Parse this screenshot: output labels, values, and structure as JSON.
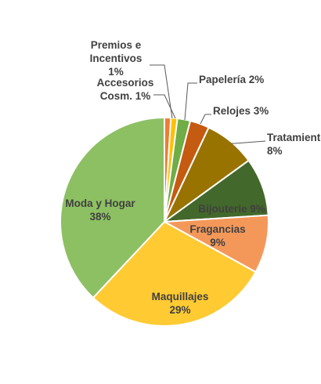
{
  "chart_data": {
    "type": "pie",
    "title": "",
    "start_angle_deg": 0,
    "direction": "clockwise",
    "slices": [
      {
        "name": "Premios e Incentivos",
        "label_lines": [
          "Premios e",
          "Incentivos",
          "1%"
        ],
        "value": 1,
        "color": "#ED7D31"
      },
      {
        "name": "Accesorios Cosm.",
        "label_lines": [
          "Accesorios",
          "Cosm. 1%"
        ],
        "value": 1,
        "color": "#FFC000"
      },
      {
        "name": "Papelería",
        "label_lines": [
          "Papelería 2%"
        ],
        "value": 2,
        "color": "#70AD47"
      },
      {
        "name": "Relojes",
        "label_lines": [
          "Relojes 3%"
        ],
        "value": 3,
        "color": "#C55A11"
      },
      {
        "name": "Tratamiento",
        "label_lines": [
          "Tratamiento",
          "8%"
        ],
        "value": 8,
        "color": "#997300"
      },
      {
        "name": "Bijouterie",
        "label_lines": [
          "Bijouterie 9%"
        ],
        "value": 9,
        "color": "#43682B"
      },
      {
        "name": "Fragancias",
        "label_lines": [
          "Fragancias",
          "9%"
        ],
        "value": 9,
        "color": "#F4985A"
      },
      {
        "name": "Maquillajes",
        "label_lines": [
          "Maquillajes",
          "29%"
        ],
        "value": 29,
        "color": "#FFCA32"
      },
      {
        "name": "Moda y Hogar",
        "label_lines": [
          "Moda y Hogar",
          "38%"
        ],
        "value": 38,
        "color": "#8DC063"
      }
    ]
  }
}
